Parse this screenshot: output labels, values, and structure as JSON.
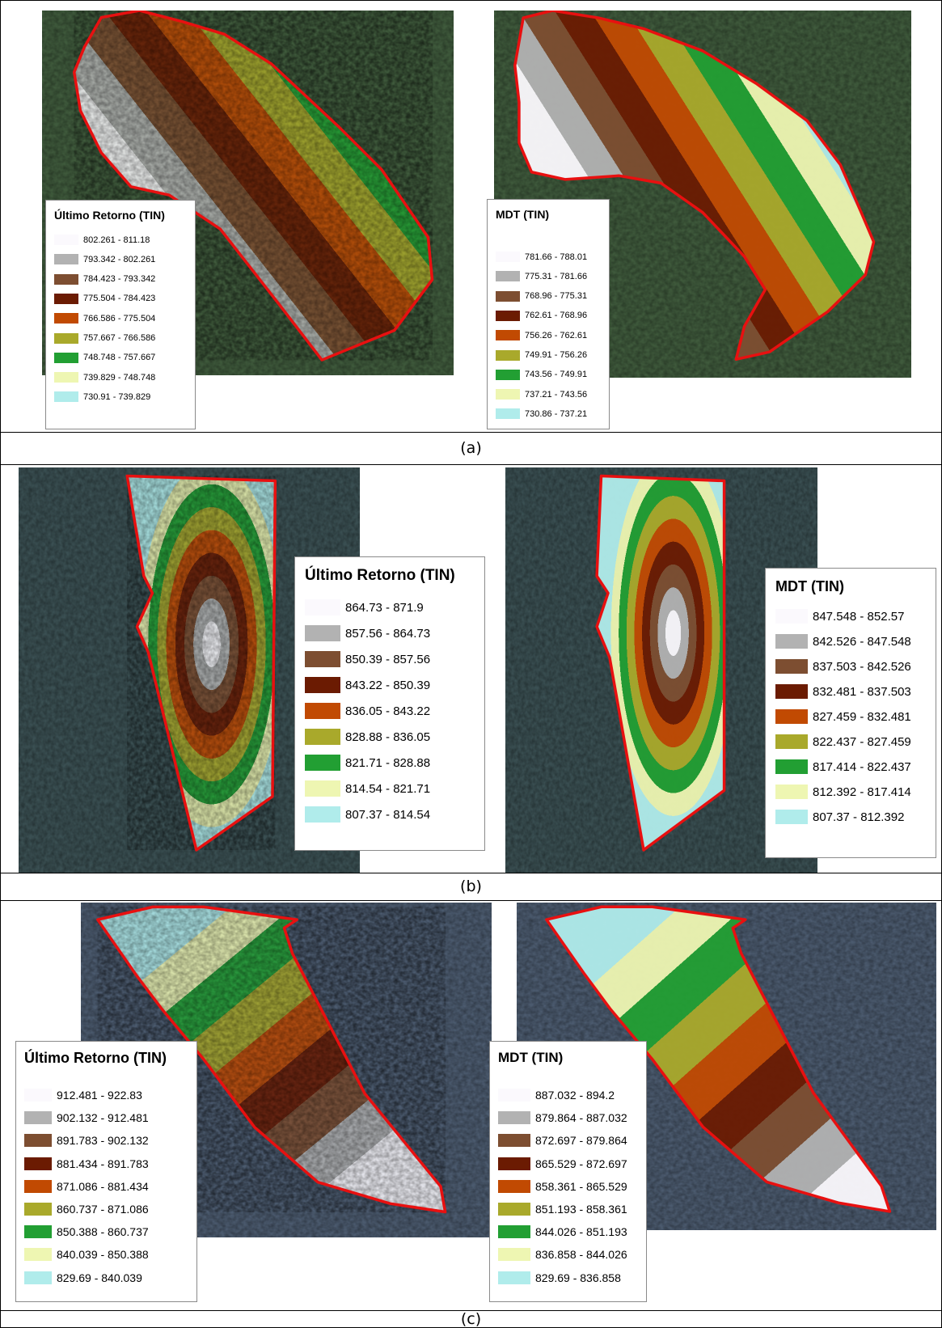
{
  "rows": [
    {
      "caption": "(a)",
      "panels": [
        {
          "legend": {
            "title": "Último Retorno (TIN)",
            "items": [
              {
                "label": "802.261 - 811.18",
                "color": "#fbf9fd"
              },
              {
                "label": "793.342 - 802.261",
                "color": "#b2b2b2"
              },
              {
                "label": "784.423 - 793.342",
                "color": "#7d4e31"
              },
              {
                "label": "775.504 - 784.423",
                "color": "#6b1b02"
              },
              {
                "label": "766.586 - 775.504",
                "color": "#c14a02"
              },
              {
                "label": "757.667 - 766.586",
                "color": "#a9a92b"
              },
              {
                "label": "748.748 - 757.667",
                "color": "#229f33"
              },
              {
                "label": "739.829 - 748.748",
                "color": "#eef6b2"
              },
              {
                "label": "730.91 - 739.829",
                "color": "#b0eceb"
              }
            ]
          }
        },
        {
          "legend": {
            "title": "MDT (TIN)",
            "items": [
              {
                "label": "781.66 - 788.01",
                "color": "#fbf9fd"
              },
              {
                "label": "775.31 - 781.66",
                "color": "#b2b2b2"
              },
              {
                "label": "768.96 - 775.31",
                "color": "#7d4e31"
              },
              {
                "label": "762.61 - 768.96",
                "color": "#6b1b02"
              },
              {
                "label": "756.26 - 762.61",
                "color": "#c14a02"
              },
              {
                "label": "749.91 - 756.26",
                "color": "#a9a92b"
              },
              {
                "label": "743.56 - 749.91",
                "color": "#229f33"
              },
              {
                "label": "737.21 - 743.56",
                "color": "#eef6b2"
              },
              {
                "label": "730.86 - 737.21",
                "color": "#b0eceb"
              }
            ]
          }
        }
      ]
    },
    {
      "caption": "(b)",
      "panels": [
        {
          "legend": {
            "title": "Último Retorno (TIN)",
            "items": [
              {
                "label": "864.73 - 871.9",
                "color": "#fbf9fd"
              },
              {
                "label": "857.56 - 864.73",
                "color": "#b2b2b2"
              },
              {
                "label": "850.39 - 857.56",
                "color": "#7d4e31"
              },
              {
                "label": "843.22 - 850.39",
                "color": "#6b1b02"
              },
              {
                "label": "836.05 - 843.22",
                "color": "#c14a02"
              },
              {
                "label": "828.88 - 836.05",
                "color": "#a9a92b"
              },
              {
                "label": "821.71 - 828.88",
                "color": "#229f33"
              },
              {
                "label": "814.54 - 821.71",
                "color": "#eef6b2"
              },
              {
                "label": "807.37 - 814.54",
                "color": "#b0eceb"
              }
            ]
          }
        },
        {
          "legend": {
            "title": "MDT (TIN)",
            "items": [
              {
                "label": "847.548 - 852.57",
                "color": "#fbf9fd"
              },
              {
                "label": "842.526 - 847.548",
                "color": "#b2b2b2"
              },
              {
                "label": "837.503 - 842.526",
                "color": "#7d4e31"
              },
              {
                "label": "832.481 - 837.503",
                "color": "#6b1b02"
              },
              {
                "label": "827.459 - 832.481",
                "color": "#c14a02"
              },
              {
                "label": "822.437 - 827.459",
                "color": "#a9a92b"
              },
              {
                "label": "817.414 - 822.437",
                "color": "#229f33"
              },
              {
                "label": "812.392 - 817.414",
                "color": "#eef6b2"
              },
              {
                "label": "807.37 - 812.392",
                "color": "#b0eceb"
              }
            ]
          }
        }
      ]
    },
    {
      "caption": "(c)",
      "panels": [
        {
          "legend": {
            "title": "Último Retorno (TIN)",
            "items": [
              {
                "label": "912.481 - 922.83",
                "color": "#fbf9fd"
              },
              {
                "label": "902.132 - 912.481",
                "color": "#b2b2b2"
              },
              {
                "label": "891.783 - 902.132",
                "color": "#7d4e31"
              },
              {
                "label": "881.434 - 891.783",
                "color": "#6b1b02"
              },
              {
                "label": "871.086 - 881.434",
                "color": "#c14a02"
              },
              {
                "label": "860.737 - 871.086",
                "color": "#a9a92b"
              },
              {
                "label": "850.388 - 860.737",
                "color": "#229f33"
              },
              {
                "label": "840.039 - 850.388",
                "color": "#eef6b2"
              },
              {
                "label": "829.69 - 840.039",
                "color": "#b0eceb"
              }
            ]
          }
        },
        {
          "legend": {
            "title": "MDT (TIN)",
            "items": [
              {
                "label": "887.032 - 894.2",
                "color": "#fbf9fd"
              },
              {
                "label": "879.864 - 887.032",
                "color": "#b2b2b2"
              },
              {
                "label": "872.697 - 879.864",
                "color": "#7d4e31"
              },
              {
                "label": "865.529 - 872.697",
                "color": "#6b1b02"
              },
              {
                "label": "858.361 - 865.529",
                "color": "#c14a02"
              },
              {
                "label": "851.193 - 858.361",
                "color": "#a9a92b"
              },
              {
                "label": "844.026 - 851.193",
                "color": "#229f33"
              },
              {
                "label": "836.858 - 844.026",
                "color": "#eef6b2"
              },
              {
                "label": "829.69 - 836.858",
                "color": "#b0eceb"
              }
            ]
          }
        }
      ]
    }
  ]
}
